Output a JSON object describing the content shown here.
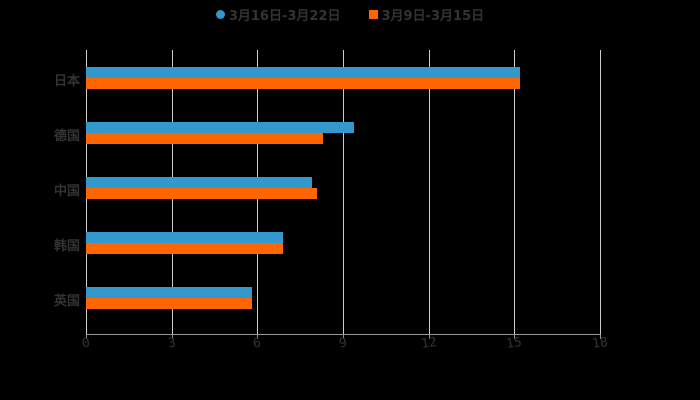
{
  "chart_data": {
    "type": "bar",
    "orientation": "horizontal",
    "title": "",
    "xlabel": "",
    "ylabel": "",
    "xlim": [
      0,
      18
    ],
    "x_ticks": [
      "0",
      "3",
      "6",
      "9",
      "12",
      "15",
      "18"
    ],
    "categories": [
      "日本",
      "德国",
      "中国",
      "韩国",
      "英国"
    ],
    "series": [
      {
        "name": "3月16日-3月22日",
        "color": "#3399cc",
        "values": [
          15.2,
          9.4,
          7.9,
          6.9,
          5.8
        ]
      },
      {
        "name": "3月9日-3月15日",
        "color": "#ff6600",
        "values": [
          15.2,
          8.3,
          8.1,
          6.9,
          5.8
        ]
      }
    ],
    "grid": true,
    "legend_position": "top"
  },
  "legend": {
    "series1": "3月16日-3月22日",
    "series2": "3月9日-3月15日"
  },
  "categories": [
    "日本",
    "德国",
    "中国",
    "韩国",
    "英国"
  ],
  "ticks": [
    "0",
    "3",
    "6",
    "9",
    "12",
    "15",
    "18"
  ]
}
